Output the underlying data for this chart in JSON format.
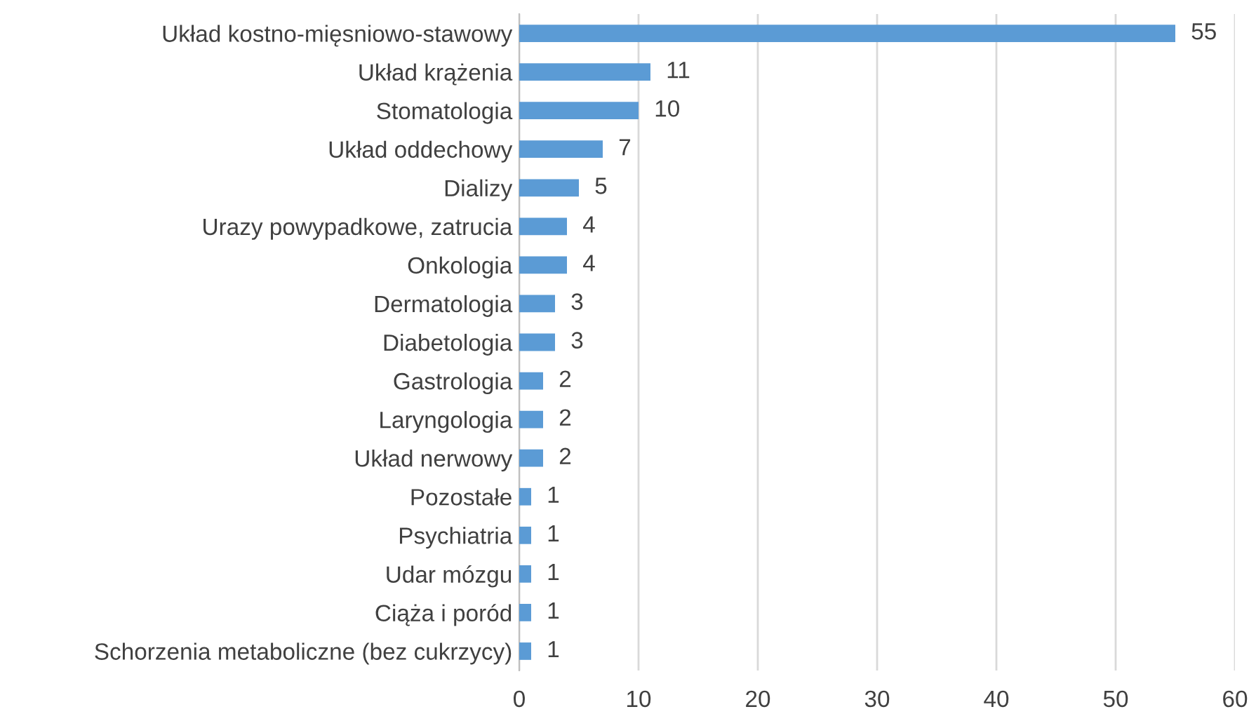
{
  "chart_data": {
    "type": "bar",
    "orientation": "horizontal",
    "categories": [
      "Układ kostno-mięsniowo-stawowy",
      "Układ krążenia",
      "Stomatologia",
      "Układ oddechowy",
      "Dializy",
      "Urazy powypadkowe, zatrucia",
      "Onkologia",
      "Dermatologia",
      "Diabetologia",
      "Gastrologia",
      "Laryngologia",
      "Układ nerwowy",
      "Pozostałe",
      "Psychiatria",
      "Udar mózgu",
      "Ciąża i poród",
      "Schorzenia metaboliczne (bez cukrzycy)"
    ],
    "values": [
      55,
      11,
      10,
      7,
      5,
      4,
      4,
      3,
      3,
      2,
      2,
      2,
      1,
      1,
      1,
      1,
      1
    ],
    "color": "#5b9bd5",
    "xlim": [
      0,
      60
    ],
    "xticks": [
      0,
      10,
      20,
      30,
      40,
      50,
      60
    ],
    "grid": "x",
    "data_labels": true
  }
}
